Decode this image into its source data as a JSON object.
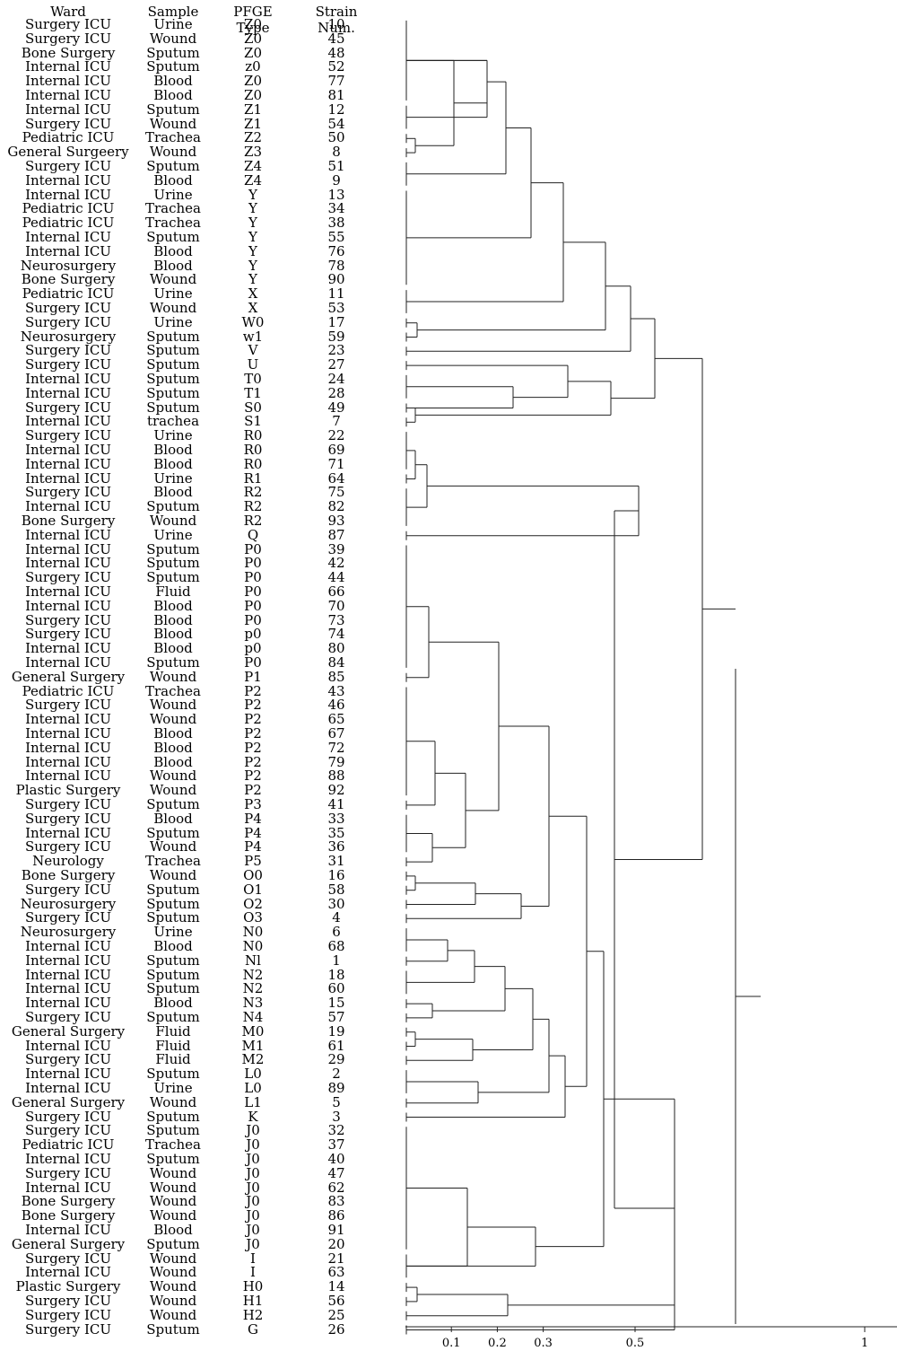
{
  "headers": {
    "ward": "Ward",
    "sample": "Sample",
    "pfge": "PFGE Type",
    "strain": "Strain Num."
  },
  "rows": [
    {
      "ward": "Surgery ICU",
      "sample": "Urine",
      "pfge": "Z0",
      "strain": "10"
    },
    {
      "ward": "Surgery ICU",
      "sample": "Wound",
      "pfge": "Z0",
      "strain": "45"
    },
    {
      "ward": "Bone Surgery",
      "sample": "Sputum",
      "pfge": "Z0",
      "strain": "48"
    },
    {
      "ward": "Internal ICU",
      "sample": "Sputum",
      "pfge": "z0",
      "strain": "52"
    },
    {
      "ward": "Internal ICU",
      "sample": "Blood",
      "pfge": "Z0",
      "strain": "77"
    },
    {
      "ward": "Internal ICU",
      "sample": "Blood",
      "pfge": "Z0",
      "strain": "81"
    },
    {
      "ward": "Internal ICU",
      "sample": "Sputum",
      "pfge": "Z1",
      "strain": "12"
    },
    {
      "ward": "Surgery ICU",
      "sample": "Wound",
      "pfge": "Z1",
      "strain": "54"
    },
    {
      "ward": "Pediatric ICU",
      "sample": "Trachea",
      "pfge": "Z2",
      "strain": "50"
    },
    {
      "ward": "General Surgeery",
      "sample": "Wound",
      "pfge": "Z3",
      "strain": "8"
    },
    {
      "ward": "Surgery ICU",
      "sample": "Sputum",
      "pfge": "Z4",
      "strain": "51"
    },
    {
      "ward": "Internal ICU",
      "sample": "Blood",
      "pfge": "Z4",
      "strain": "9"
    },
    {
      "ward": "Internal ICU",
      "sample": "Urine",
      "pfge": "Y",
      "strain": "13"
    },
    {
      "ward": "Pediatric ICU",
      "sample": "Trachea",
      "pfge": "Y",
      "strain": "34"
    },
    {
      "ward": "Pediatric ICU",
      "sample": "Trachea",
      "pfge": "Y",
      "strain": "38"
    },
    {
      "ward": "Internal ICU",
      "sample": "Sputum",
      "pfge": "Y",
      "strain": "55"
    },
    {
      "ward": "Internal ICU",
      "sample": "Blood",
      "pfge": "Y",
      "strain": "76"
    },
    {
      "ward": "Neurosurgery",
      "sample": "Blood",
      "pfge": "Y",
      "strain": "78"
    },
    {
      "ward": "Bone Surgery",
      "sample": "Wound",
      "pfge": "Y",
      "strain": "90"
    },
    {
      "ward": "Pediatric ICU",
      "sample": "Urine",
      "pfge": "X",
      "strain": "11"
    },
    {
      "ward": "Surgery ICU",
      "sample": "Wound",
      "pfge": "X",
      "strain": "53"
    },
    {
      "ward": "Surgery ICU",
      "sample": "Urine",
      "pfge": "W0",
      "strain": "17"
    },
    {
      "ward": "Neurosurgery",
      "sample": "Sputum",
      "pfge": "w1",
      "strain": "59"
    },
    {
      "ward": "Surgery ICU",
      "sample": "Sputum",
      "pfge": "V",
      "strain": "23"
    },
    {
      "ward": "Surgery ICU",
      "sample": "Sputum",
      "pfge": "U",
      "strain": "27"
    },
    {
      "ward": "Internal ICU",
      "sample": "Sputum",
      "pfge": "T0",
      "strain": "24"
    },
    {
      "ward": "Internal ICU",
      "sample": "Sputum",
      "pfge": "T1",
      "strain": "28"
    },
    {
      "ward": "Surgery ICU",
      "sample": "Sputum",
      "pfge": "S0",
      "strain": "49"
    },
    {
      "ward": "Internal ICU",
      "sample": "trachea",
      "pfge": "S1",
      "strain": "7"
    },
    {
      "ward": "Surgery ICU",
      "sample": "Urine",
      "pfge": "R0",
      "strain": "22"
    },
    {
      "ward": "Internal ICU",
      "sample": "Blood",
      "pfge": "R0",
      "strain": "69"
    },
    {
      "ward": "Internal ICU",
      "sample": "Blood",
      "pfge": "R0",
      "strain": "71"
    },
    {
      "ward": "Internal ICU",
      "sample": "Urine",
      "pfge": "R1",
      "strain": "64"
    },
    {
      "ward": "Surgery ICU",
      "sample": "Blood",
      "pfge": "R2",
      "strain": "75"
    },
    {
      "ward": "Internal ICU",
      "sample": "Sputum",
      "pfge": "R2",
      "strain": "82"
    },
    {
      "ward": "Bone Surgery",
      "sample": "Wound",
      "pfge": "R2",
      "strain": "93"
    },
    {
      "ward": "Internal ICU",
      "sample": "Urine",
      "pfge": "Q",
      "strain": "87"
    },
    {
      "ward": "Internal ICU",
      "sample": "Sputum",
      "pfge": "P0",
      "strain": "39"
    },
    {
      "ward": "Internal ICU",
      "sample": "Sputum",
      "pfge": "P0",
      "strain": "42"
    },
    {
      "ward": "Surgery ICU",
      "sample": "Sputum",
      "pfge": "P0",
      "strain": "44"
    },
    {
      "ward": "Internal ICU",
      "sample": "Fluid",
      "pfge": "P0",
      "strain": "66"
    },
    {
      "ward": "Internal ICU",
      "sample": "Blood",
      "pfge": "P0",
      "strain": "70"
    },
    {
      "ward": "Surgery ICU",
      "sample": "Blood",
      "pfge": "P0",
      "strain": "73"
    },
    {
      "ward": "Surgery ICU",
      "sample": "Blood",
      "pfge": "p0",
      "strain": "74"
    },
    {
      "ward": "Internal ICU",
      "sample": "Blood",
      "pfge": "p0",
      "strain": "80"
    },
    {
      "ward": "Internal ICU",
      "sample": "Sputum",
      "pfge": "P0",
      "strain": "84"
    },
    {
      "ward": "General Surgery",
      "sample": "Wound",
      "pfge": "P1",
      "strain": "85"
    },
    {
      "ward": "Pediatric ICU",
      "sample": "Trachea",
      "pfge": "P2",
      "strain": "43"
    },
    {
      "ward": "Surgery ICU",
      "sample": "Wound",
      "pfge": "P2",
      "strain": "46"
    },
    {
      "ward": "Internal ICU",
      "sample": "Wound",
      "pfge": "P2",
      "strain": "65"
    },
    {
      "ward": "Internal ICU",
      "sample": "Blood",
      "pfge": "P2",
      "strain": "67"
    },
    {
      "ward": "Internal ICU",
      "sample": "Blood",
      "pfge": "P2",
      "strain": "72"
    },
    {
      "ward": "Internal ICU",
      "sample": "Blood",
      "pfge": "P2",
      "strain": "79"
    },
    {
      "ward": "Internal ICU",
      "sample": "Wound",
      "pfge": "P2",
      "strain": "88"
    },
    {
      "ward": "Plastic Surgery",
      "sample": "Wound",
      "pfge": "P2",
      "strain": "92"
    },
    {
      "ward": "Surgery ICU",
      "sample": "Sputum",
      "pfge": "P3",
      "strain": "41"
    },
    {
      "ward": "Surgery ICU",
      "sample": "Blood",
      "pfge": "P4",
      "strain": "33"
    },
    {
      "ward": "Internal ICU",
      "sample": "Sputum",
      "pfge": "P4",
      "strain": "35"
    },
    {
      "ward": "Surgery ICU",
      "sample": "Wound",
      "pfge": "P4",
      "strain": "36"
    },
    {
      "ward": "Neurology",
      "sample": "Trachea",
      "pfge": "P5",
      "strain": "31"
    },
    {
      "ward": "Bone Surgery",
      "sample": "Wound",
      "pfge": "O0",
      "strain": "16"
    },
    {
      "ward": "Surgery ICU",
      "sample": "Sputum",
      "pfge": "O1",
      "strain": "58"
    },
    {
      "ward": "Neurosurgery",
      "sample": "Sputum",
      "pfge": "O2",
      "strain": "30"
    },
    {
      "ward": "Surgery ICU",
      "sample": "Sputum",
      "pfge": "O3",
      "strain": "4"
    },
    {
      "ward": "Neurosurgery",
      "sample": "Urine",
      "pfge": "N0",
      "strain": "6"
    },
    {
      "ward": "Internal ICU",
      "sample": "Blood",
      "pfge": "N0",
      "strain": "68"
    },
    {
      "ward": "Internal ICU",
      "sample": "Sputum",
      "pfge": "Nl",
      "strain": "1"
    },
    {
      "ward": "Internal ICU",
      "sample": "Sputum",
      "pfge": "N2",
      "strain": "18"
    },
    {
      "ward": "Internal ICU",
      "sample": "Sputum",
      "pfge": "N2",
      "strain": "60"
    },
    {
      "ward": "Internal ICU",
      "sample": "Blood",
      "pfge": "N3",
      "strain": "15"
    },
    {
      "ward": "Surgery ICU",
      "sample": "Sputum",
      "pfge": "N4",
      "strain": "57"
    },
    {
      "ward": "General Surgery",
      "sample": "Fluid",
      "pfge": "M0",
      "strain": "19"
    },
    {
      "ward": "Internal ICU",
      "sample": "Fluid",
      "pfge": "M1",
      "strain": "61"
    },
    {
      "ward": "Surgery ICU",
      "sample": "Fluid",
      "pfge": "M2",
      "strain": "29"
    },
    {
      "ward": "Internal ICU",
      "sample": "Sputum",
      "pfge": "L0",
      "strain": "2"
    },
    {
      "ward": "Internal ICU",
      "sample": "Urine",
      "pfge": "L0",
      "strain": "89"
    },
    {
      "ward": "General Surgery",
      "sample": "Wound",
      "pfge": "L1",
      "strain": "5"
    },
    {
      "ward": "Surgery ICU",
      "sample": "Sputum",
      "pfge": "K",
      "strain": "3"
    },
    {
      "ward": "Surgery ICU",
      "sample": "Sputum",
      "pfge": "J0",
      "strain": "32"
    },
    {
      "ward": "Pediatric ICU",
      "sample": "Trachea",
      "pfge": "J0",
      "strain": "37"
    },
    {
      "ward": "Internal ICU",
      "sample": "Sputum",
      "pfge": "J0",
      "strain": "40"
    },
    {
      "ward": "Surgery ICU",
      "sample": "Wound",
      "pfge": "J0",
      "strain": "47"
    },
    {
      "ward": "Internal ICU",
      "sample": "Wound",
      "pfge": "J0",
      "strain": "62"
    },
    {
      "ward": "Bone Surgery",
      "sample": "Wound",
      "pfge": "J0",
      "strain": "83"
    },
    {
      "ward": "Bone Surgery",
      "sample": "Wound",
      "pfge": "J0",
      "strain": "86"
    },
    {
      "ward": "Internal ICU",
      "sample": "Blood",
      "pfge": "J0",
      "strain": "91"
    },
    {
      "ward": "General Surgery",
      "sample": "Sputum",
      "pfge": "J0",
      "strain": "20"
    },
    {
      "ward": "Surgery ICU",
      "sample": "Wound",
      "pfge": "I",
      "strain": "21"
    },
    {
      "ward": "Internal ICU",
      "sample": "Wound",
      "pfge": "I",
      "strain": "63"
    },
    {
      "ward": "Plastic Surgery",
      "sample": "Wound",
      "pfge": "H0",
      "strain": "14"
    },
    {
      "ward": "Surgery ICU",
      "sample": "Wound",
      "pfge": "H1",
      "strain": "56"
    },
    {
      "ward": "Surgery ICU",
      "sample": "Wound",
      "pfge": "H2",
      "strain": "25"
    },
    {
      "ward": "Surgery ICU",
      "sample": "Sputum",
      "pfge": "G",
      "strain": "26"
    }
  ],
  "axis": {
    "ticks": [
      {
        "value": 0.1,
        "label": "0.1"
      },
      {
        "value": 0.2,
        "label": "0.2"
      },
      {
        "value": 0.3,
        "label": "0.3"
      },
      {
        "value": 0.5,
        "label": "0.5"
      },
      {
        "value": 1,
        "label": "1"
      }
    ]
  }
}
